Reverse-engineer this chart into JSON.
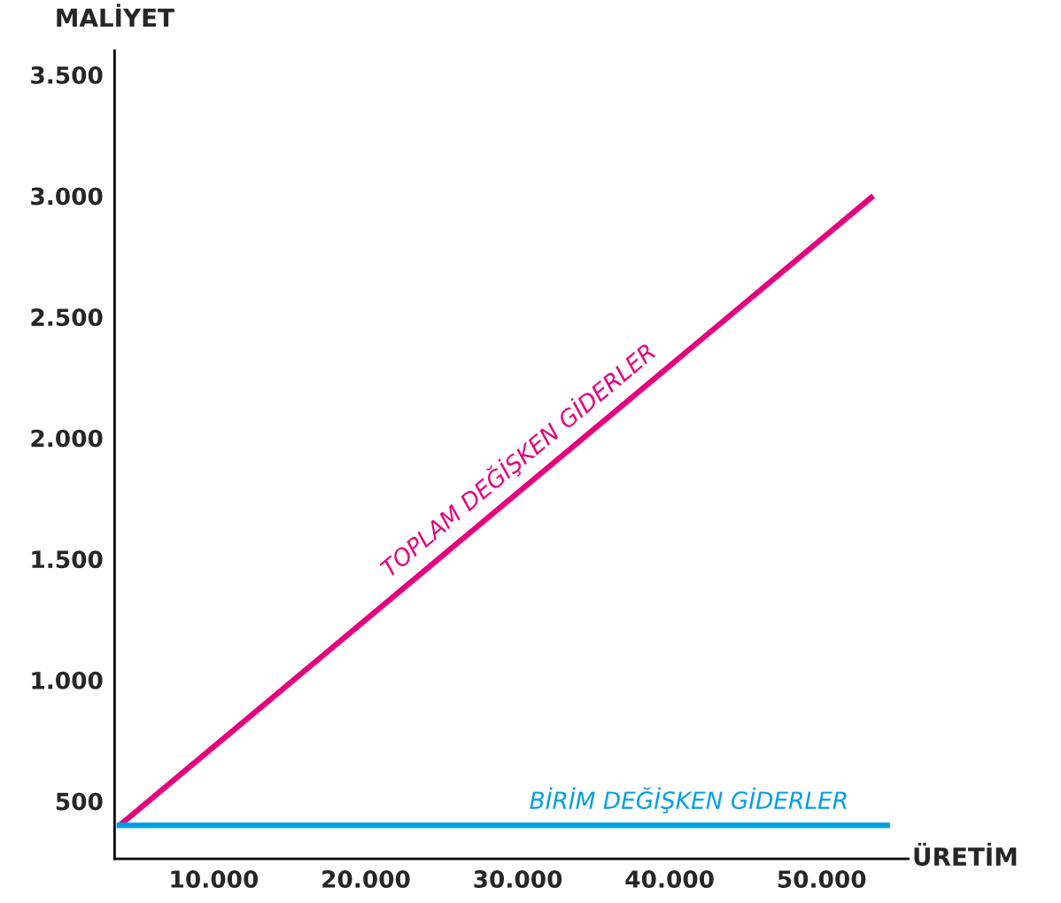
{
  "chart_data": {
    "type": "line",
    "xlabel": "ÜRETİM",
    "ylabel": "MALİYET",
    "xlim": [
      3470,
      55700
    ],
    "ylim": [
      262,
      3600
    ],
    "xticks": [
      {
        "value": 10000,
        "label": "10.000"
      },
      {
        "value": 20000,
        "label": "20.000"
      },
      {
        "value": 30000,
        "label": "30.000"
      },
      {
        "value": 40000,
        "label": "40.000"
      },
      {
        "value": 50000,
        "label": "50.000"
      }
    ],
    "yticks": [
      {
        "value": 500,
        "label": "500"
      },
      {
        "value": 1000,
        "label": "1.000"
      },
      {
        "value": 1500,
        "label": "1.500"
      },
      {
        "value": 2000,
        "label": "2.000"
      },
      {
        "value": 2500,
        "label": "2.500"
      },
      {
        "value": 3000,
        "label": "3.000"
      },
      {
        "value": 3500,
        "label": "3.500"
      }
    ],
    "grid": false,
    "legend": false,
    "marker": "none",
    "line_style": "solid",
    "series": [
      {
        "name": "TOPLAM DEĞİŞKEN GİDERLER",
        "color": "#e6007e",
        "x": [
          3800,
          53400
        ],
        "values": [
          400,
          3000
        ]
      },
      {
        "name": "BİRİM DEĞİŞKEN GİDERLER",
        "color": "#009fe3",
        "x": [
          3600,
          54500
        ],
        "values": [
          400,
          400
        ]
      }
    ]
  }
}
